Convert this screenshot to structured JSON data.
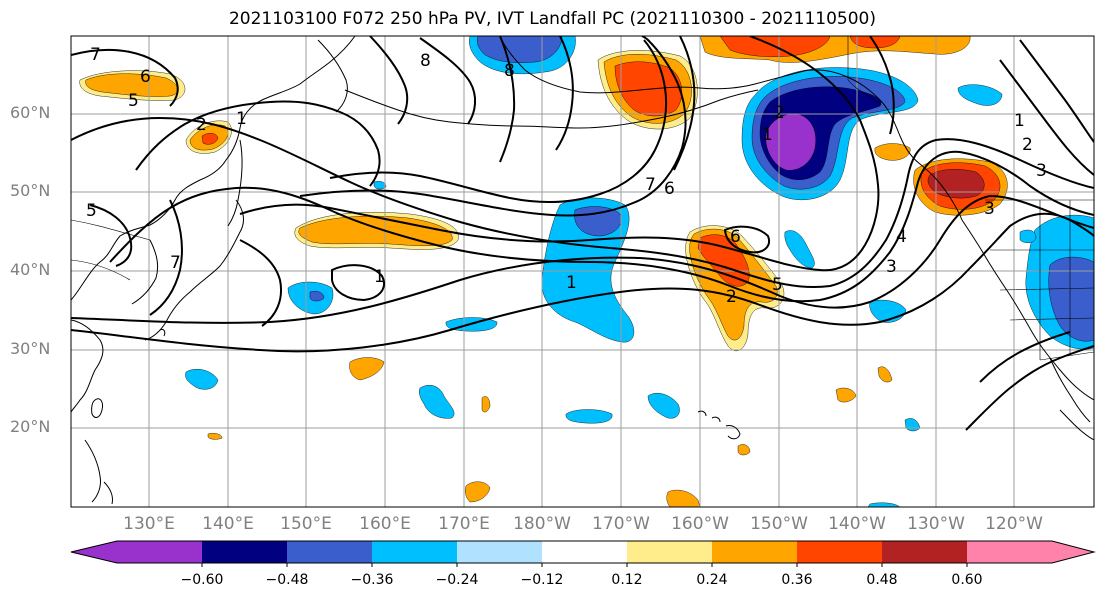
{
  "title": "2021103100 F072 250 hPa PV, IVT Landfall PC (2021110300 - 2021110500)",
  "colors": {
    "n060": "#9932CC",
    "n048": "#000080",
    "n036": "#3A5FCD",
    "n024": "#00BFFF",
    "n012": "#B0E2FF",
    "zero": "#FFFFFF",
    "p012": "#FFEC8B",
    "p024": "#FFA500",
    "p036": "#FF4500",
    "p048": "#B22222",
    "p060": "#FF82AB"
  },
  "lat_labels": [
    "60°N",
    "50°N",
    "40°N",
    "30°N",
    "20°N"
  ],
  "lon_labels": [
    "130°E",
    "140°E",
    "150°E",
    "160°E",
    "170°E",
    "180°W",
    "170°W",
    "160°W",
    "150°W",
    "140°W",
    "130°W",
    "120°W"
  ],
  "colorbar": {
    "tick_labels": [
      "−0.60",
      "−0.48",
      "−0.36",
      "−0.24",
      "−0.12",
      "0.12",
      "0.24",
      "0.36",
      "0.48",
      "0.60"
    ]
  },
  "contour_labels": [
    "7",
    "6",
    "5",
    "2",
    "1",
    "8",
    "5",
    "7",
    "1",
    "8",
    "7",
    "6",
    "1",
    "6",
    "5",
    "2",
    "1",
    "2",
    "3",
    "4",
    "3",
    "1",
    "2",
    "3"
  ]
}
